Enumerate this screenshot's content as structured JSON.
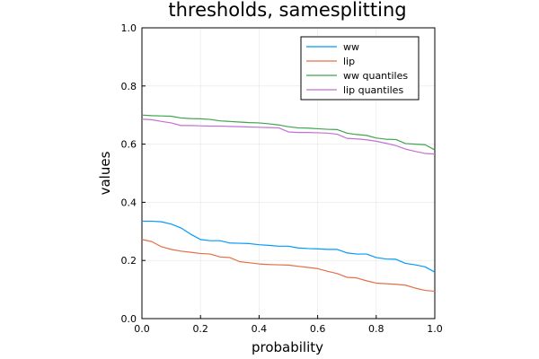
{
  "chart_data": {
    "type": "line",
    "title": "thresholds, samesplitting",
    "xlabel": "probability",
    "ylabel": "values",
    "xlim": [
      0,
      1
    ],
    "ylim": [
      0,
      1
    ],
    "xticks": [
      0.0,
      0.2,
      0.4,
      0.6,
      0.8,
      1.0
    ],
    "yticks": [
      0.0,
      0.2,
      0.4,
      0.6,
      0.8,
      1.0
    ],
    "tick_format": "0.0",
    "grid": true,
    "legend_position": "top-right",
    "x": [
      0,
      0.033,
      0.067,
      0.1,
      0.133,
      0.167,
      0.2,
      0.233,
      0.267,
      0.3,
      0.333,
      0.367,
      0.4,
      0.433,
      0.467,
      0.5,
      0.533,
      0.567,
      0.6,
      0.633,
      0.667,
      0.7,
      0.733,
      0.767,
      0.8,
      0.833,
      0.867,
      0.9,
      0.933,
      0.967,
      1.0
    ],
    "series": [
      {
        "name": "ww",
        "color": "#009AFA",
        "values": [
          0.335,
          0.335,
          0.333,
          0.325,
          0.312,
          0.29,
          0.272,
          0.268,
          0.268,
          0.26,
          0.259,
          0.258,
          0.254,
          0.252,
          0.249,
          0.249,
          0.243,
          0.241,
          0.24,
          0.238,
          0.238,
          0.226,
          0.222,
          0.222,
          0.21,
          0.205,
          0.204,
          0.19,
          0.185,
          0.178,
          0.16
        ]
      },
      {
        "name": "lip",
        "color": "#E36F47",
        "values": [
          0.272,
          0.265,
          0.247,
          0.238,
          0.232,
          0.228,
          0.224,
          0.222,
          0.212,
          0.21,
          0.196,
          0.192,
          0.188,
          0.186,
          0.185,
          0.184,
          0.18,
          0.176,
          0.172,
          0.163,
          0.155,
          0.142,
          0.14,
          0.13,
          0.122,
          0.12,
          0.118,
          0.115,
          0.105,
          0.097,
          0.094
        ]
      },
      {
        "name": "ww quantiles",
        "color": "#3EA44E",
        "values": [
          0.7,
          0.698,
          0.697,
          0.696,
          0.69,
          0.688,
          0.687,
          0.685,
          0.68,
          0.678,
          0.676,
          0.674,
          0.673,
          0.67,
          0.666,
          0.66,
          0.656,
          0.655,
          0.653,
          0.651,
          0.65,
          0.638,
          0.633,
          0.63,
          0.621,
          0.617,
          0.616,
          0.602,
          0.6,
          0.598,
          0.58
        ]
      },
      {
        "name": "lip quantiles",
        "color": "#C271D2",
        "values": [
          0.686,
          0.684,
          0.678,
          0.673,
          0.664,
          0.664,
          0.663,
          0.662,
          0.662,
          0.661,
          0.66,
          0.659,
          0.658,
          0.657,
          0.656,
          0.642,
          0.64,
          0.64,
          0.639,
          0.638,
          0.634,
          0.62,
          0.618,
          0.615,
          0.61,
          0.603,
          0.595,
          0.583,
          0.575,
          0.568,
          0.566
        ]
      }
    ]
  }
}
